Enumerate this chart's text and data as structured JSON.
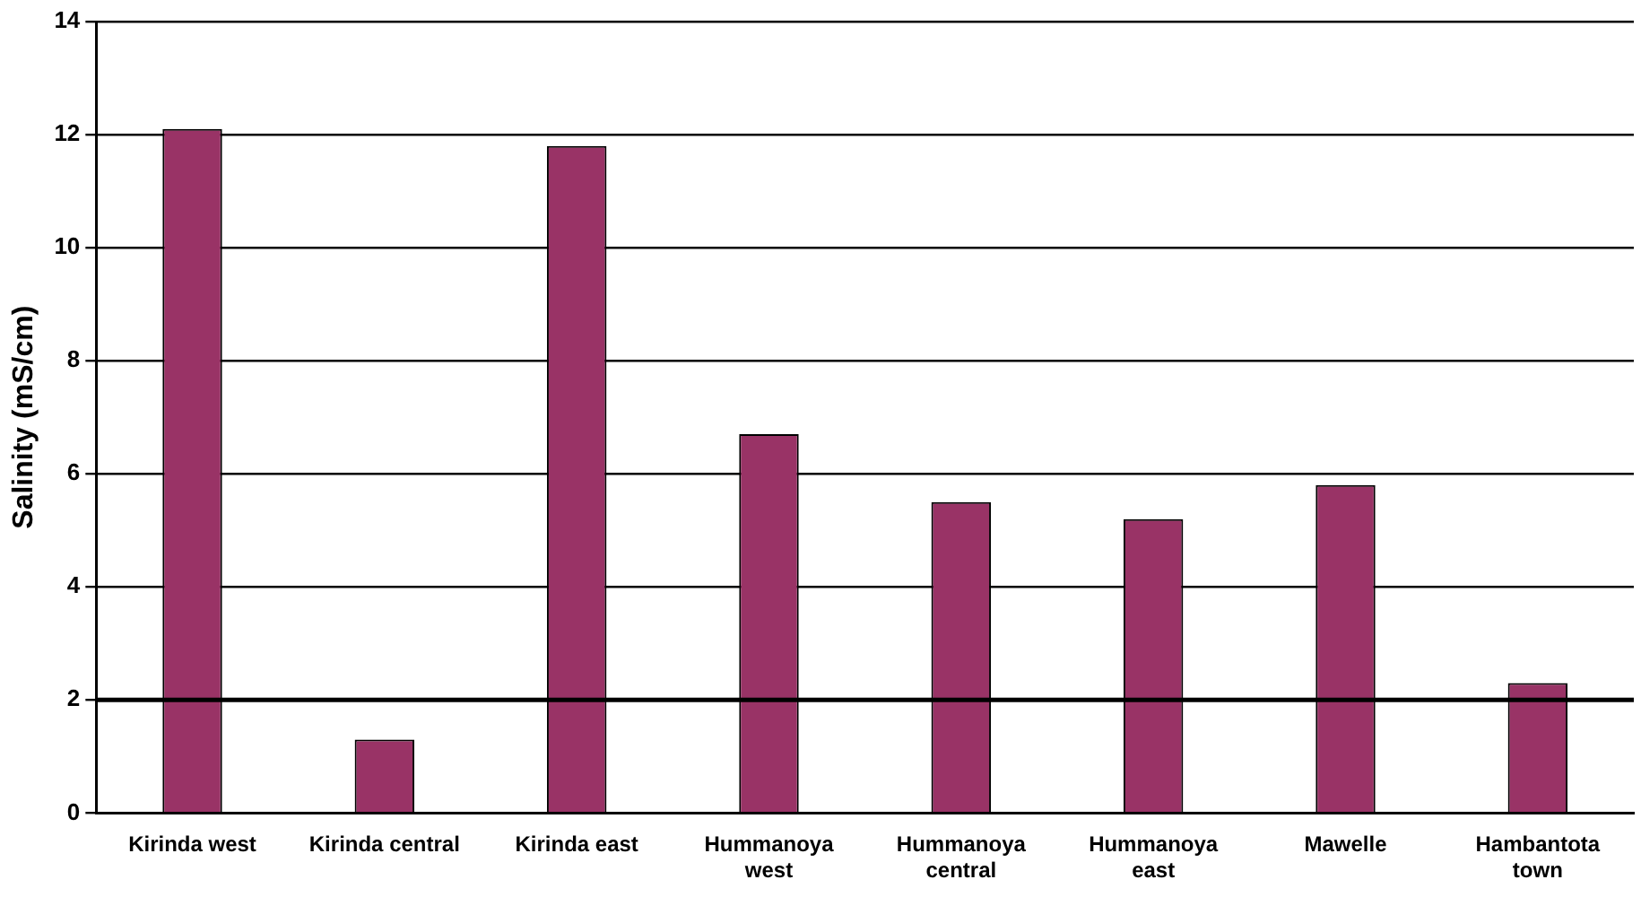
{
  "chart_data": {
    "type": "bar",
    "ylabel": "Salinity (mS/cm)",
    "categories": [
      "Kirinda west",
      "Kirinda central",
      "Kirinda east",
      "Hummanoya west",
      "Hummanoya central",
      "Hummanoya east",
      "Mawelle",
      "Hambantota town"
    ],
    "values": [
      12.1,
      1.3,
      11.8,
      6.7,
      5.5,
      5.2,
      5.8,
      2.3
    ],
    "color": "#993366",
    "ylim": [
      0,
      14
    ],
    "yticks": [
      0,
      2,
      4,
      6,
      8,
      10,
      12,
      14
    ],
    "grid": "y",
    "legend": false,
    "ref_lines": [
      {
        "axis": "y",
        "value": 2,
        "color": "#000000"
      }
    ]
  }
}
